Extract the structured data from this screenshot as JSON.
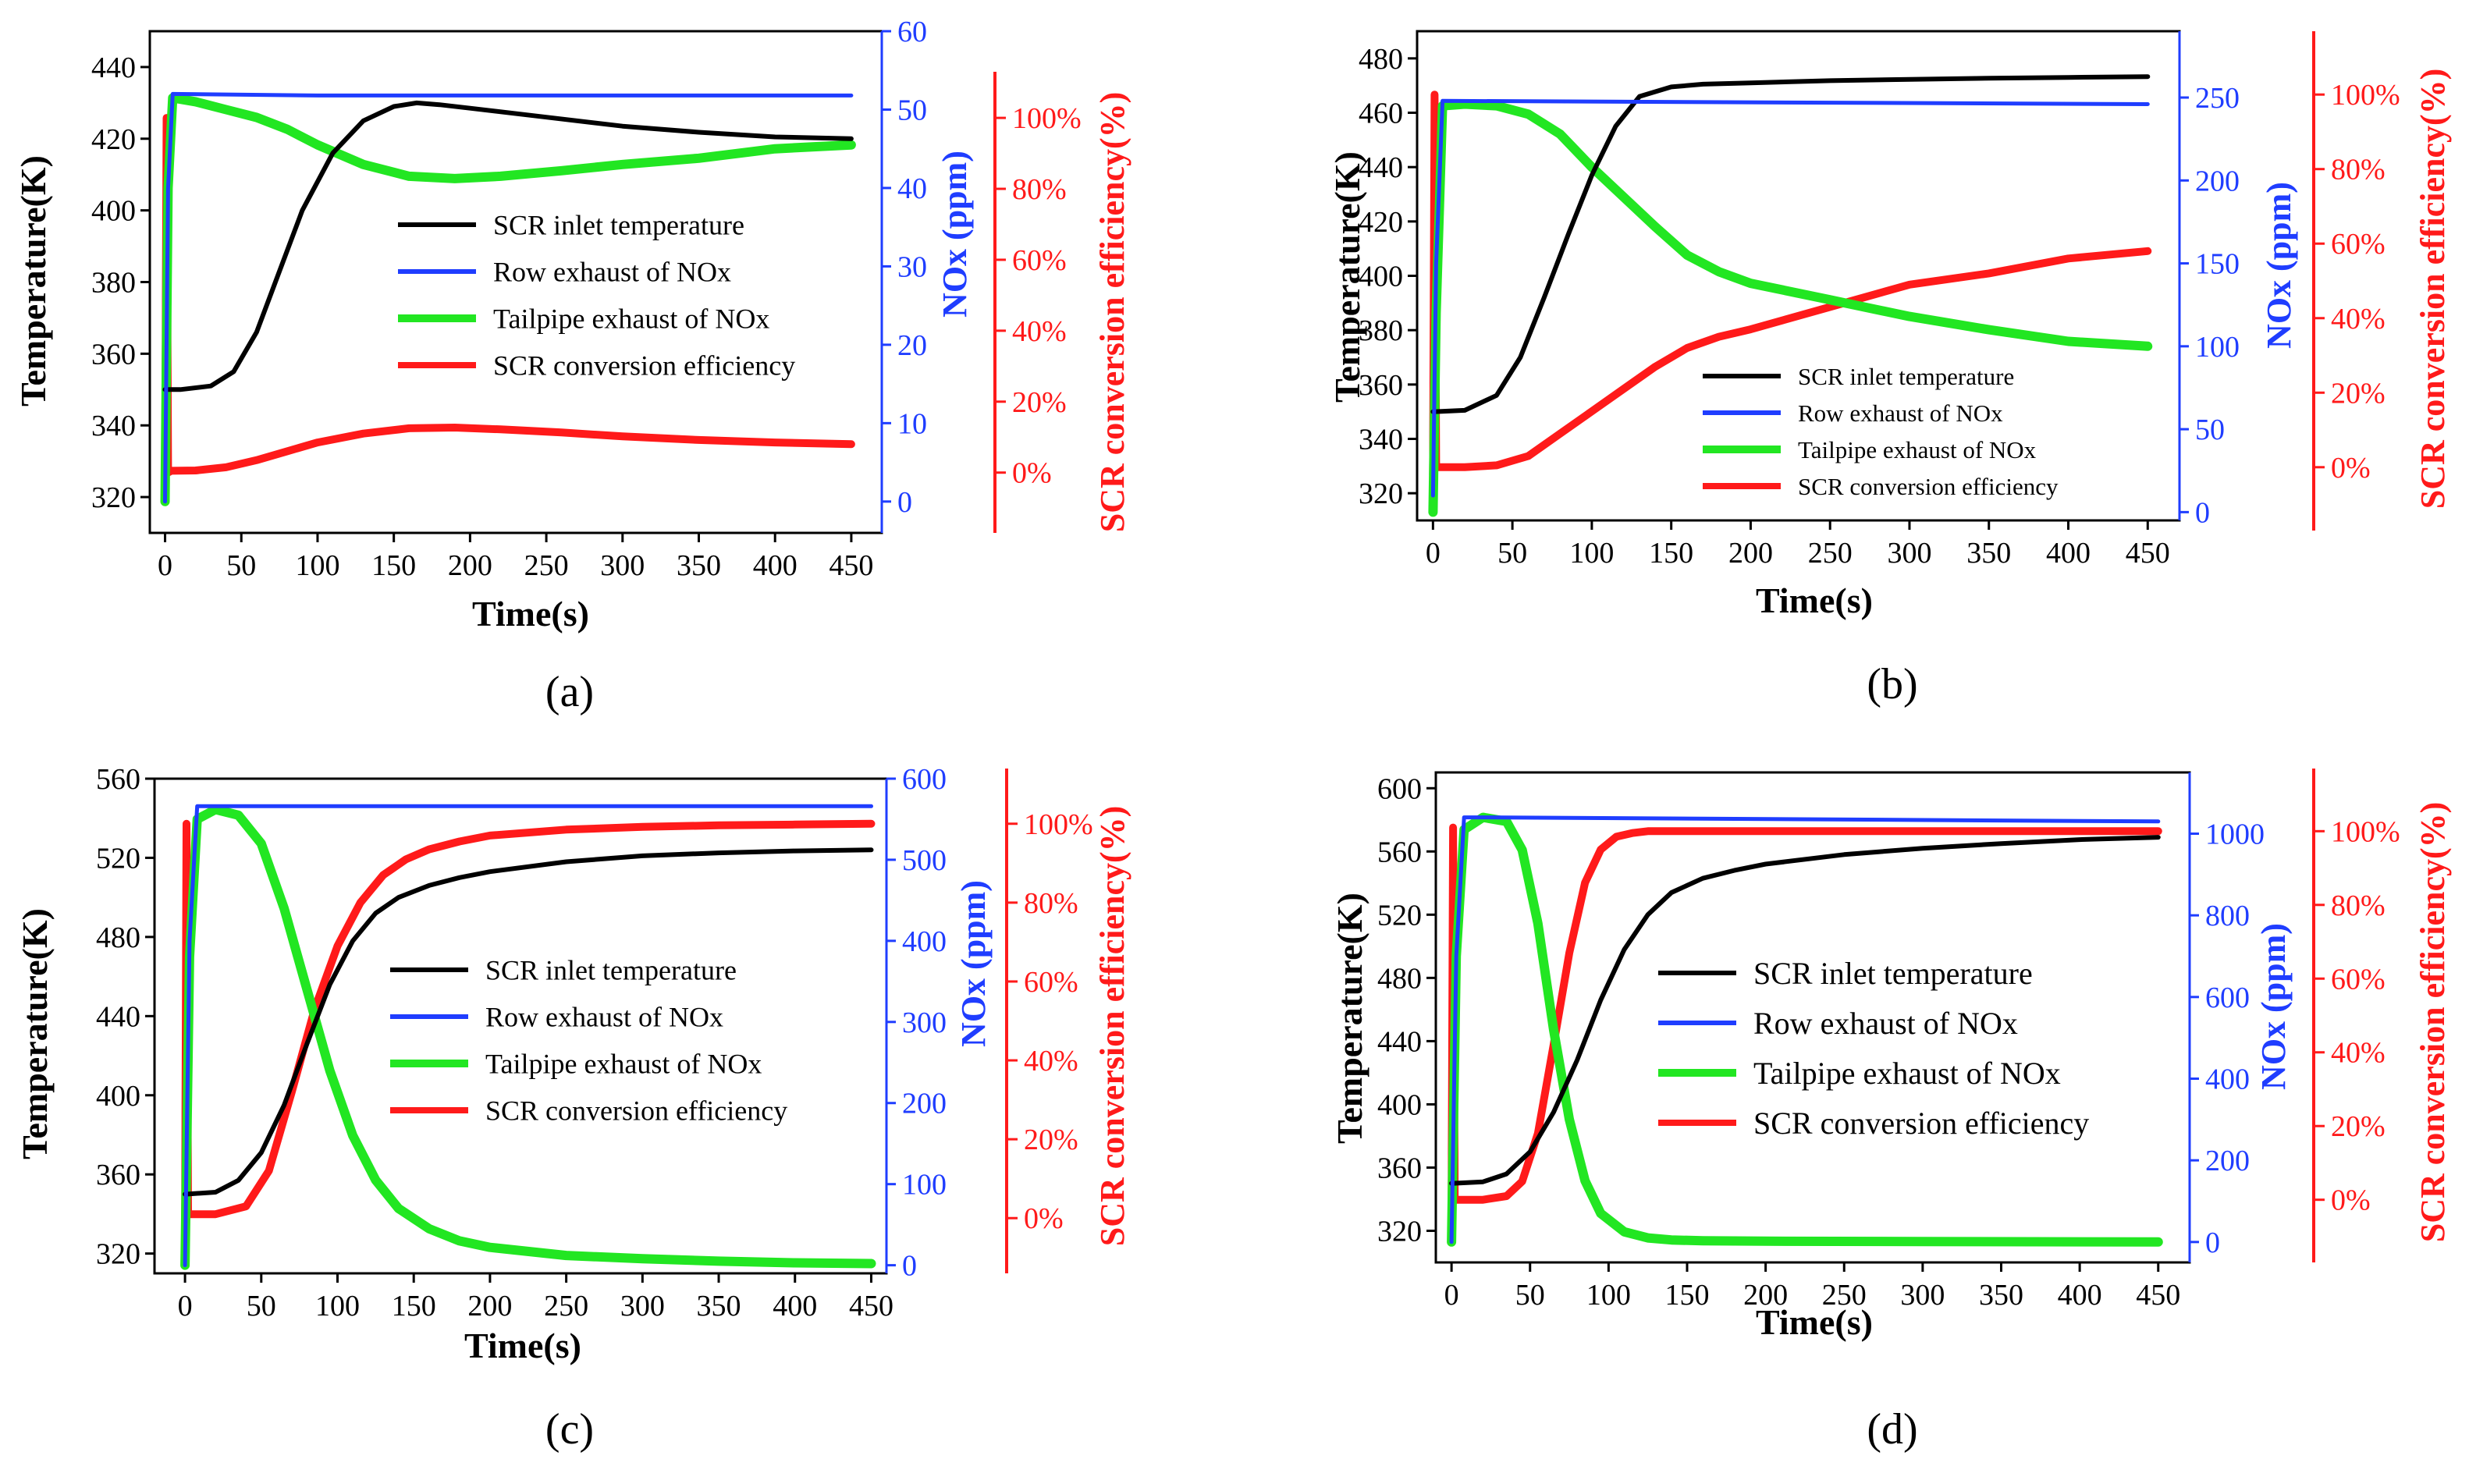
{
  "colors": {
    "temperature": "#000000",
    "raw_nox": "#1f3dff",
    "tailpipe_nox": "#22e622",
    "efficiency": "#ff1a1a"
  },
  "chart_data": [
    {
      "panel": "(a)",
      "type": "line",
      "xlabel": "Time(s)",
      "ylabel": "Temperature(K)",
      "y2label": "NOx (ppm)",
      "y3label": "SCR conversion efficiency(%)",
      "xlim": [
        -10,
        470
      ],
      "xticks": [
        0,
        50,
        100,
        150,
        200,
        250,
        300,
        350,
        400,
        450
      ],
      "ylim": [
        310,
        450
      ],
      "yticks": [
        320,
        340,
        360,
        380,
        400,
        420,
        440
      ],
      "y2lim": [
        -4,
        60
      ],
      "y2ticks": [
        0,
        10,
        20,
        30,
        40,
        50,
        60
      ],
      "y3lim": [
        -17,
        113
      ],
      "y3ticks": [
        0,
        20,
        40,
        60,
        80,
        100
      ],
      "legend": [
        "SCR inlet temperature",
        "Row exhaust of NOx",
        "Tailpipe exhaust of NOx",
        "SCR conversion efficiency"
      ],
      "legend_font": 36,
      "series": [
        {
          "name": "SCR inlet temperature",
          "axis": "temp",
          "x": [
            0,
            10,
            30,
            45,
            60,
            75,
            90,
            110,
            130,
            150,
            165,
            180,
            200,
            250,
            300,
            350,
            400,
            450
          ],
          "values": [
            350,
            350,
            351,
            355,
            366,
            383,
            400,
            416,
            425,
            429,
            430,
            429.5,
            428.5,
            426,
            423.5,
            421.8,
            420.5,
            420
          ]
        },
        {
          "name": "Row exhaust of NOx",
          "axis": "nox",
          "x": [
            0,
            2,
            5,
            100,
            450
          ],
          "values": [
            0,
            40,
            52,
            51.8,
            51.8
          ]
        },
        {
          "name": "Tailpipe exhaust of NOx",
          "axis": "nox",
          "x": [
            0,
            2,
            5,
            20,
            40,
            60,
            80,
            100,
            130,
            160,
            190,
            220,
            260,
            300,
            350,
            400,
            450
          ],
          "values": [
            0,
            40,
            51.5,
            51,
            50,
            49,
            47.5,
            45.5,
            43,
            41.5,
            41.2,
            41.5,
            42.2,
            43,
            43.8,
            45,
            45.5
          ]
        },
        {
          "name": "SCR conversion efficiency",
          "axis": "eff",
          "x": [
            0,
            1,
            2,
            4,
            20,
            40,
            60,
            80,
            100,
            130,
            160,
            190,
            220,
            260,
            300,
            350,
            400,
            450
          ],
          "values": [
            -5,
            100,
            0,
            0.5,
            0.6,
            1.5,
            3.5,
            6,
            8.5,
            11,
            12.5,
            12.7,
            12.2,
            11.3,
            10.2,
            9.2,
            8.5,
            8
          ]
        }
      ]
    },
    {
      "panel": "(b)",
      "type": "line",
      "xlabel": "Time(s)",
      "ylabel": "Temperature(K)",
      "y2label": "NOx (ppm)",
      "y3label": "SCR conversion efficiency(%)",
      "xlim": [
        -10,
        470
      ],
      "xticks": [
        0,
        50,
        100,
        150,
        200,
        250,
        300,
        350,
        400,
        450
      ],
      "ylim": [
        310,
        490
      ],
      "yticks": [
        320,
        340,
        360,
        380,
        400,
        420,
        440,
        460,
        480
      ],
      "y2lim": [
        -5,
        290
      ],
      "y2ticks": [
        0,
        50,
        100,
        150,
        200,
        250
      ],
      "y3lim": [
        -17,
        117
      ],
      "y3ticks": [
        0,
        20,
        40,
        60,
        80,
        100
      ],
      "legend": [
        "SCR inlet temperature",
        "Row exhaust of NOx",
        "Tailpipe exhaust of NOx",
        "SCR conversion efficiency"
      ],
      "legend_font": 31,
      "series": [
        {
          "name": "SCR inlet temperature",
          "axis": "temp",
          "x": [
            0,
            20,
            40,
            55,
            70,
            85,
            100,
            115,
            130,
            150,
            170,
            200,
            250,
            300,
            350,
            400,
            450
          ],
          "values": [
            350,
            350.5,
            356,
            370,
            392,
            415,
            437,
            455,
            466,
            469.5,
            470.5,
            471,
            471.8,
            472.3,
            472.7,
            473,
            473.3
          ]
        },
        {
          "name": "Row exhaust of NOx",
          "axis": "nox",
          "x": [
            0,
            2,
            6,
            450
          ],
          "values": [
            10,
            150,
            248,
            246
          ]
        },
        {
          "name": "Tailpipe exhaust of NOx",
          "axis": "nox",
          "x": [
            0,
            2,
            6,
            20,
            40,
            60,
            80,
            100,
            120,
            140,
            160,
            180,
            200,
            250,
            300,
            350,
            400,
            450
          ],
          "values": [
            0,
            120,
            245,
            246,
            245,
            240,
            228,
            208,
            190,
            172,
            155,
            145,
            138,
            128,
            118,
            110,
            103,
            100
          ]
        },
        {
          "name": "SCR conversion efficiency",
          "axis": "eff",
          "x": [
            0,
            1,
            2,
            4,
            20,
            40,
            60,
            80,
            100,
            120,
            140,
            160,
            180,
            200,
            250,
            300,
            350,
            400,
            450
          ],
          "values": [
            -2,
            100,
            0,
            0,
            0,
            0.5,
            3,
            9,
            15,
            21,
            27,
            32,
            35,
            37,
            43,
            49,
            52,
            56,
            58
          ]
        }
      ]
    },
    {
      "panel": "(c)",
      "type": "line",
      "xlabel": "Time(s)",
      "ylabel": "Temperature(K)",
      "y2label": "NOx (ppm)",
      "y3label": "SCR conversion efficiency(%)",
      "xlim": [
        -20,
        460
      ],
      "xticks": [
        0,
        50,
        100,
        150,
        200,
        250,
        300,
        350,
        400,
        450
      ],
      "ylim": [
        310,
        560
      ],
      "yticks": [
        320,
        360,
        400,
        440,
        480,
        520,
        560
      ],
      "y2lim": [
        -10,
        600
      ],
      "y2ticks": [
        0,
        100,
        200,
        300,
        400,
        500,
        600
      ],
      "y3lim": [
        -14,
        114
      ],
      "y3ticks": [
        0,
        20,
        40,
        60,
        80,
        100
      ],
      "legend": [
        "SCR inlet temperature",
        "Row exhaust of NOx",
        "Tailpipe exhaust of NOx",
        "SCR conversion efficiency"
      ],
      "legend_font": 36,
      "series": [
        {
          "name": "SCR inlet temperature",
          "axis": "temp",
          "x": [
            0,
            20,
            35,
            50,
            65,
            80,
            95,
            110,
            125,
            140,
            160,
            180,
            200,
            250,
            300,
            350,
            400,
            450
          ],
          "values": [
            350,
            351,
            357,
            371,
            395,
            426,
            456,
            478,
            492,
            500,
            506,
            510,
            513,
            518,
            521,
            522.5,
            523.5,
            524
          ]
        },
        {
          "name": "Row exhaust of NOx",
          "axis": "nox",
          "x": [
            0,
            3,
            8,
            450
          ],
          "values": [
            0,
            400,
            566,
            566
          ]
        },
        {
          "name": "Tailpipe exhaust of NOx",
          "axis": "nox",
          "x": [
            0,
            3,
            8,
            20,
            35,
            50,
            65,
            80,
            95,
            110,
            125,
            140,
            160,
            180,
            200,
            250,
            300,
            350,
            400,
            450
          ],
          "values": [
            0,
            380,
            550,
            562,
            555,
            520,
            440,
            340,
            240,
            160,
            105,
            70,
            45,
            30,
            22,
            12,
            8,
            5,
            3,
            2
          ]
        },
        {
          "name": "SCR conversion efficiency",
          "axis": "eff",
          "x": [
            0,
            1,
            2,
            4,
            20,
            40,
            55,
            70,
            85,
            100,
            115,
            130,
            145,
            160,
            180,
            200,
            250,
            300,
            350,
            400,
            450
          ],
          "values": [
            -5,
            100,
            1,
            1,
            1,
            3,
            12,
            32,
            53,
            69,
            80,
            87,
            91,
            93.5,
            95.5,
            97,
            98.5,
            99.2,
            99.6,
            99.8,
            100
          ]
        }
      ]
    },
    {
      "panel": "(d)",
      "type": "line",
      "xlabel": "Time(s)",
      "ylabel": "Temperature(K)",
      "y2label": "NOx (ppm)",
      "y3label": "SCR conversion efficiency(%)",
      "xlim": [
        -10,
        470
      ],
      "xticks": [
        0,
        50,
        100,
        150,
        200,
        250,
        300,
        350,
        400,
        450
      ],
      "ylim": [
        300,
        610
      ],
      "yticks": [
        320,
        360,
        400,
        440,
        480,
        520,
        560,
        600
      ],
      "y2lim": [
        -50,
        1150
      ],
      "y2ticks": [
        0,
        200,
        400,
        600,
        800,
        1000
      ],
      "y3lim": [
        -17,
        117
      ],
      "y3ticks": [
        0,
        20,
        40,
        60,
        80,
        100
      ],
      "legend": [
        "SCR inlet temperature",
        "Row exhaust of NOx",
        "Tailpipe exhaust of NOx",
        "SCR conversion efficiency"
      ],
      "legend_font": 40,
      "series": [
        {
          "name": "SCR inlet temperature",
          "axis": "temp",
          "x": [
            0,
            20,
            35,
            50,
            65,
            80,
            95,
            110,
            125,
            140,
            160,
            180,
            200,
            250,
            300,
            350,
            400,
            450
          ],
          "values": [
            350,
            351,
            356,
            370,
            395,
            428,
            466,
            498,
            520,
            534,
            543,
            548,
            552,
            558,
            562,
            565,
            567.5,
            569
          ]
        },
        {
          "name": "Row exhaust of NOx",
          "axis": "nox",
          "x": [
            0,
            3,
            8,
            20,
            450
          ],
          "values": [
            0,
            700,
            1040,
            1040,
            1030
          ]
        },
        {
          "name": "Tailpipe exhaust of NOx",
          "axis": "nox",
          "x": [
            0,
            3,
            8,
            20,
            35,
            45,
            55,
            65,
            75,
            85,
            95,
            110,
            125,
            140,
            160,
            200,
            300,
            450
          ],
          "values": [
            0,
            700,
            1010,
            1040,
            1030,
            960,
            780,
            520,
            300,
            150,
            70,
            25,
            10,
            5,
            3,
            2,
            1,
            0
          ]
        },
        {
          "name": "SCR conversion efficiency",
          "axis": "eff",
          "x": [
            0,
            1,
            2,
            4,
            20,
            35,
            45,
            55,
            65,
            75,
            85,
            95,
            105,
            115,
            125,
            140,
            160,
            200,
            450
          ],
          "values": [
            -5,
            101,
            0,
            0,
            0,
            1,
            5,
            18,
            42,
            67,
            86,
            95,
            98.5,
            99.5,
            100,
            100,
            100,
            100,
            100
          ]
        }
      ]
    }
  ]
}
